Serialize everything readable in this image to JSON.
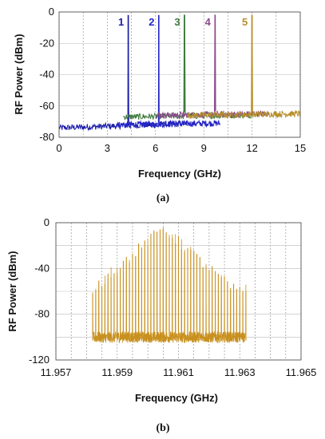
{
  "chart_data": [
    {
      "id": "a",
      "type": "line",
      "caption": "(a)",
      "xlabel": "Frequency (GHz)",
      "ylabel": "RF Power (dBm)",
      "xlim": [
        0,
        15
      ],
      "ylim": [
        -80,
        0
      ],
      "xticks": [
        "0",
        "3",
        "6",
        "9",
        "12",
        "15"
      ],
      "yticks": [
        "0",
        "-20",
        "-40",
        "-60",
        "-80"
      ],
      "grid": true,
      "peak_labels": [
        "1",
        "2",
        "3",
        "4",
        "5"
      ],
      "series": [
        {
          "label": "1",
          "color": "#1a1aa8",
          "peak_x": 4.3,
          "peak_y": -2,
          "noise_floor": -74,
          "x_range": [
            0,
            8.0
          ]
        },
        {
          "label": "2",
          "color": "#2424c8",
          "peak_x": 6.2,
          "peak_y": -2,
          "noise_floor": -72,
          "x_range": [
            3.5,
            10.0
          ]
        },
        {
          "label": "3",
          "color": "#3d7a3d",
          "peak_x": 7.8,
          "peak_y": -2,
          "noise_floor": -67,
          "x_range": [
            4.0,
            12.0
          ]
        },
        {
          "label": "4",
          "color": "#8a4a8a",
          "peak_x": 9.7,
          "peak_y": -2,
          "noise_floor": -66,
          "x_range": [
            6.0,
            13.0
          ]
        },
        {
          "label": "5",
          "color": "#b8902a",
          "peak_x": 12.0,
          "peak_y": -2,
          "noise_floor": -66,
          "x_range": [
            8.0,
            15.0
          ]
        }
      ]
    },
    {
      "id": "b",
      "type": "line",
      "caption": "(b)",
      "xlabel": "Frequency (GHz)",
      "ylabel": "RF Power (dBm)",
      "xlim": [
        11.957,
        11.965
      ],
      "ylim": [
        -120,
        0
      ],
      "xticks": [
        "11.957",
        "11.959",
        "11.961",
        "11.963",
        "11.965"
      ],
      "yticks": [
        "0",
        "-40",
        "-80",
        "-120"
      ],
      "grid": true,
      "series": [
        {
          "color": "#c8901e",
          "center_x": 11.9605,
          "peak_y": -5,
          "noise_floor": -100,
          "x_range": [
            11.9582,
            11.9632
          ],
          "edge_comb_y": -60,
          "comb_spacing": 0.0001
        }
      ]
    }
  ]
}
